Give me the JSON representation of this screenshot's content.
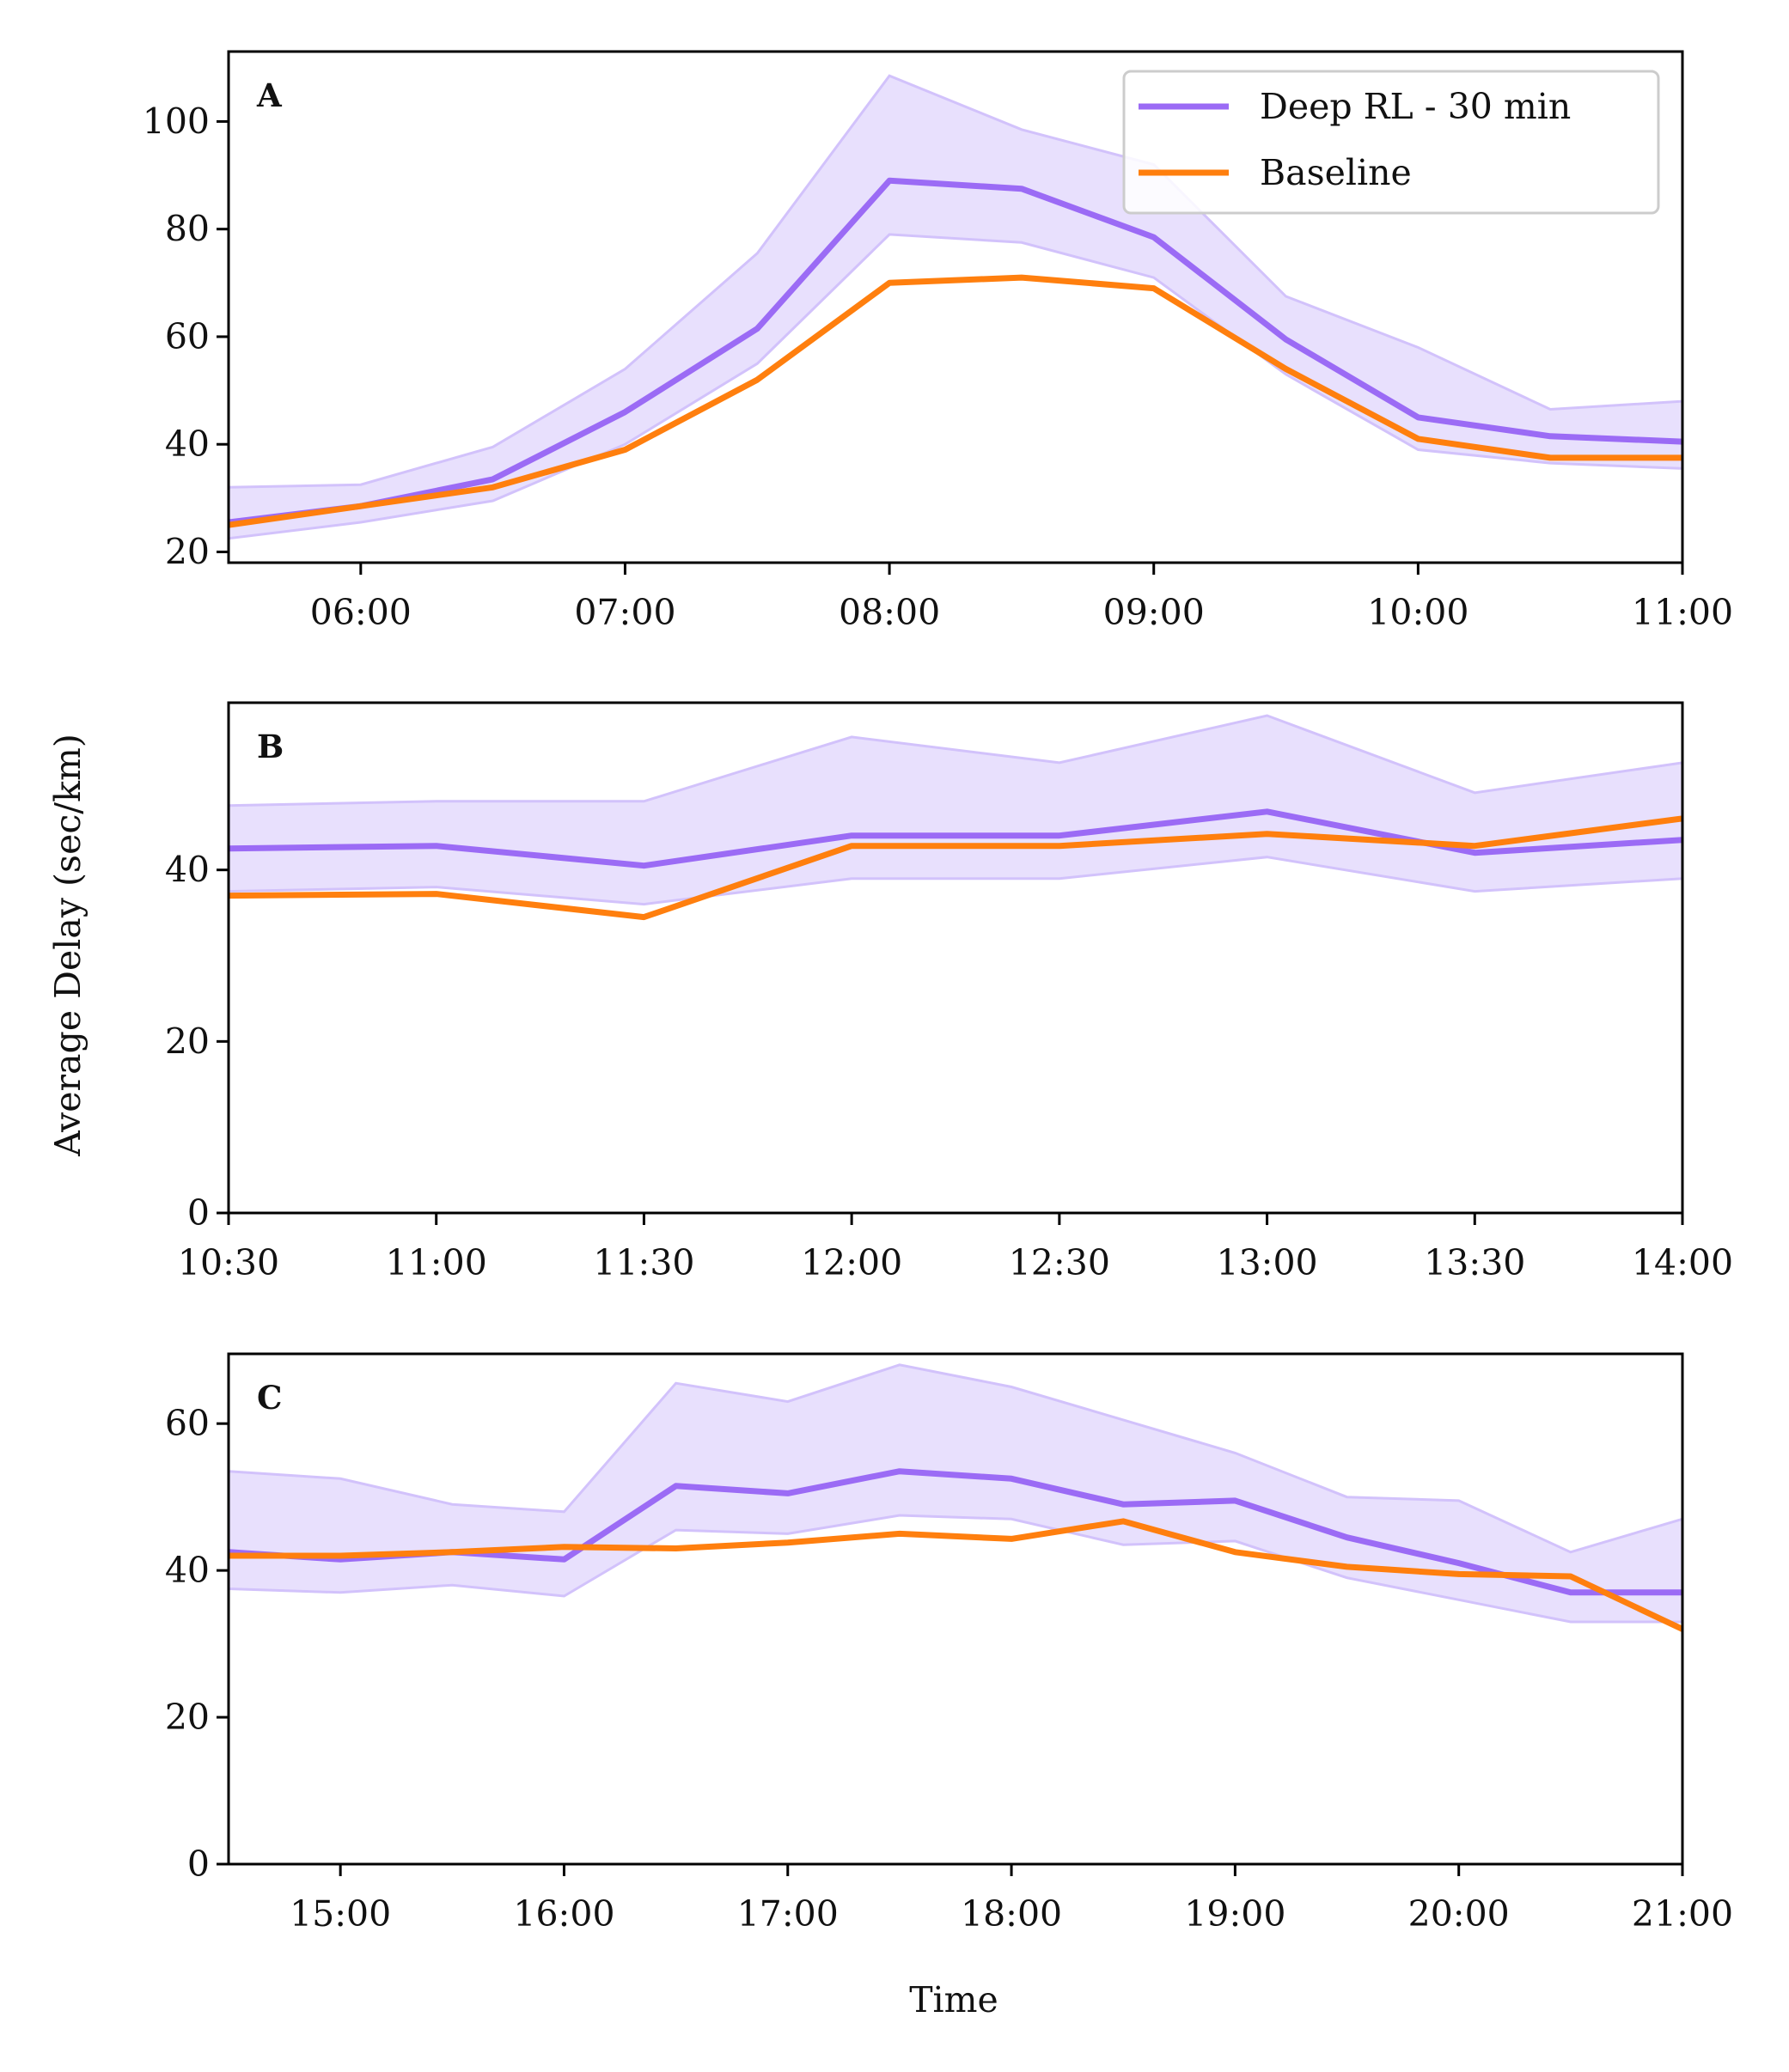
{
  "figure": {
    "shared_ylabel": "Average Delay (sec/km)",
    "xlabel": "Time"
  },
  "legend": [
    {
      "label": "Deep RL - 30 min",
      "color": "#9b6bf5"
    },
    {
      "label": "Baseline",
      "color": "#ff7f0e"
    }
  ],
  "colors": {
    "rl": "#9b6bf5",
    "rl_band": "#e8e0fd",
    "rl_band_edge": "#d2c2fb",
    "baseline": "#ff7f0e"
  },
  "chart_data": [
    {
      "type": "line",
      "panel_label": "A",
      "xlim": [
        "05:30",
        "11:00"
      ],
      "ylim": [
        18,
        113
      ],
      "yticks": [
        20,
        40,
        60,
        80,
        100
      ],
      "xticks": [
        "06:00",
        "07:00",
        "08:00",
        "09:00",
        "10:00",
        "11:00"
      ],
      "x": [
        "05:30",
        "06:00",
        "06:30",
        "07:00",
        "07:30",
        "08:00",
        "08:30",
        "09:00",
        "09:30",
        "10:00",
        "10:30",
        "11:00"
      ],
      "series": [
        {
          "name": "Deep RL - 30 min",
          "values": [
            25.5,
            28.5,
            33.5,
            46,
            61.5,
            89,
            87.5,
            78.5,
            59.5,
            45,
            41.5,
            40.5
          ],
          "band_upper": [
            32,
            32.5,
            39.5,
            54,
            75.5,
            108.5,
            98.5,
            92,
            67.5,
            58,
            46.5,
            48
          ],
          "band_lower": [
            22.5,
            25.5,
            29.5,
            40,
            55,
            79,
            77.5,
            71,
            53,
            39,
            36.5,
            35.5
          ]
        },
        {
          "name": "Baseline",
          "values": [
            25,
            28.5,
            32,
            39,
            52,
            70,
            71,
            69,
            54,
            41,
            37.5,
            37.5
          ]
        }
      ]
    },
    {
      "type": "line",
      "panel_label": "B",
      "xlim": [
        "10:30",
        "14:00"
      ],
      "ylim": [
        0,
        59.5
      ],
      "yticks": [
        0,
        20,
        40
      ],
      "xticks": [
        "10:30",
        "11:00",
        "11:30",
        "12:00",
        "12:30",
        "13:00",
        "13:30",
        "14:00"
      ],
      "x": [
        "10:30",
        "11:00",
        "11:30",
        "12:00",
        "12:30",
        "13:00",
        "13:30",
        "14:00"
      ],
      "series": [
        {
          "name": "Deep RL - 30 min",
          "values": [
            42.5,
            42.8,
            40.5,
            44,
            44,
            46.8,
            42,
            43.5
          ],
          "band_upper": [
            47.5,
            48,
            48,
            55.5,
            52.5,
            58,
            49,
            52.5
          ],
          "band_lower": [
            37.5,
            38,
            36,
            39,
            39,
            41.5,
            37.5,
            39
          ]
        },
        {
          "name": "Baseline",
          "values": [
            37,
            37.2,
            34.5,
            42.8,
            42.8,
            44.2,
            42.8,
            46
          ]
        }
      ]
    },
    {
      "type": "line",
      "panel_label": "C",
      "xlim": [
        "14:30",
        "21:00"
      ],
      "ylim": [
        0,
        69.5
      ],
      "yticks": [
        0,
        20,
        40,
        60
      ],
      "xticks": [
        "15:00",
        "16:00",
        "17:00",
        "18:00",
        "19:00",
        "20:00",
        "21:00"
      ],
      "x": [
        "14:30",
        "15:00",
        "15:30",
        "16:00",
        "16:30",
        "17:00",
        "17:30",
        "18:00",
        "18:30",
        "19:00",
        "19:30",
        "20:00",
        "20:30",
        "21:00"
      ],
      "series": [
        {
          "name": "Deep RL - 30 min",
          "values": [
            42.5,
            41.5,
            42.5,
            41.5,
            51.5,
            50.5,
            53.5,
            52.5,
            49,
            49.5,
            44.5,
            41,
            37,
            37
          ],
          "band_upper": [
            53.5,
            52.5,
            49,
            48,
            65.5,
            63,
            68,
            65,
            60.5,
            56,
            50,
            49.5,
            42.5,
            47
          ],
          "band_lower": [
            37.5,
            37,
            38,
            36.5,
            45.5,
            45,
            47.5,
            47,
            43.5,
            44,
            39,
            36,
            33,
            33
          ]
        },
        {
          "name": "Baseline",
          "values": [
            42,
            42,
            42.5,
            43.2,
            43,
            43.8,
            45,
            44.3,
            46.7,
            42.5,
            40.5,
            39.5,
            39.2,
            32
          ]
        }
      ]
    }
  ]
}
